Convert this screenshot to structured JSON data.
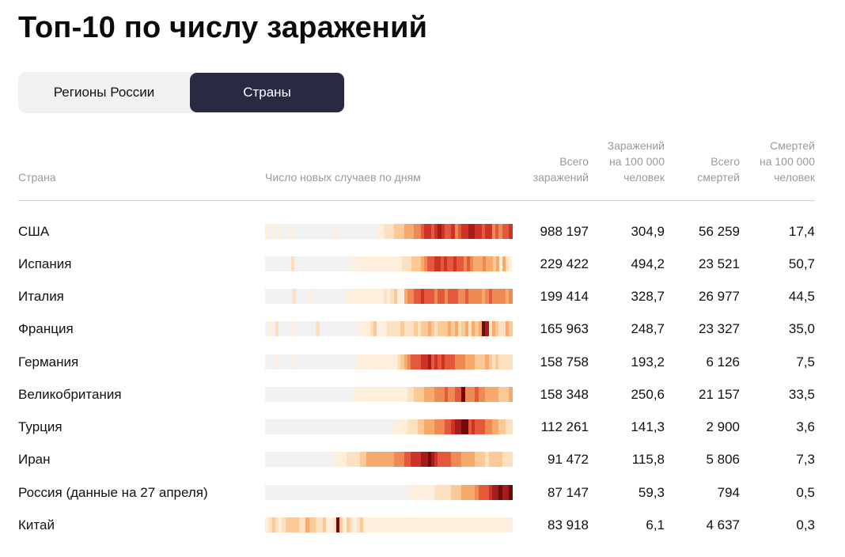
{
  "title": "Топ-10 по числу заражений",
  "tabs": [
    {
      "label": "Регионы России",
      "active": false
    },
    {
      "label": "Страны",
      "active": true
    }
  ],
  "headers": {
    "country": "Страна",
    "daily": "Число новых случаев по дням",
    "total": "Всего\nзаражений",
    "per100k": "Заражений\nна 100 000\nчеловек",
    "deaths": "Всего\nсмертей",
    "deaths_per100k": "Смертей\nна 100 000\nчеловек"
  },
  "colors": {
    "accent": "#272a40",
    "heat_scale": [
      "#f2f2f2",
      "#fdefdc",
      "#fce0c0",
      "#fbc995",
      "#f8a96c",
      "#f08a55",
      "#e4583c",
      "#cf3327",
      "#a61b1b",
      "#6e0a0a"
    ]
  },
  "rows": [
    {
      "country": "США",
      "total": "988 197",
      "per100k": "304,9",
      "deaths": "56 259",
      "deaths_per100k": "17,4",
      "heat": "1010100100000000000010000000000001122233344455677678766756778877677565667"
    },
    {
      "country": "Испания",
      "total": "229 422",
      "per100k": "494,2",
      "deaths": "23 521",
      "deaths_per100k": "50,7",
      "heat": "0000000020000000000000000010111111111111112223334566776766766565444544341421"
    },
    {
      "country": "Италия",
      "total": "199 414",
      "per100k": "328,7",
      "deaths": "26 977",
      "deaths_per100k": "44,5",
      "heat": "0000000020000100000000001111111111121231145566766656656665565555456555545"
    },
    {
      "country": "Франция",
      "total": "165 963",
      "per100k": "248,7",
      "deaths": "23 327",
      "deaths_per100k": "35,0",
      "heat": "0102000010000002000000000001111231112222322232334323334342342434982432243"
    },
    {
      "country": "Германия",
      "total": "158 758",
      "per100k": "193,2",
      "deaths": "6 126",
      "deaths_per100k": "7,5",
      "heat": "0001000010000000000000000001111111111112345666778676766655544433343232222"
    },
    {
      "country": "Великобритания",
      "total": "158 348",
      "per100k": "250,6",
      "deaths": "21 157",
      "deaths_per100k": "33,5",
      "heat": "0000000000000000000000000011111111111111112233344455565566955565544443334"
    },
    {
      "country": "Турция",
      "total": "112 261",
      "per100k": "141,3",
      "deaths": "2 900",
      "deaths_per100k": "3,6",
      "heat": "0000000000000000000000000000000000000011112223344455566788996766655443322"
    },
    {
      "country": "Иран",
      "total": "91 472",
      "per100k": "115,8",
      "deaths": "5 806",
      "deaths_per100k": "7,3",
      "heat": "0000000000000000000011112222334444444455566777889876666555444433323333222"
    },
    {
      "country": "Россия (данные на 27 апреля)",
      "total": "87 147",
      "per100k": "59,3",
      "deaths": "794",
      "deaths_per100k": "0,5",
      "heat": "0000000000000000000000000000000000000000001111111122222333444456667889889"
    },
    {
      "country": "Китай",
      "total": "83 918",
      "per100k": "6,1",
      "deaths": "4 637",
      "deaths_per100k": "0,3",
      "heat": "1232123333224332231129313212311111111111111111111111111111111111111111111"
    }
  ]
}
